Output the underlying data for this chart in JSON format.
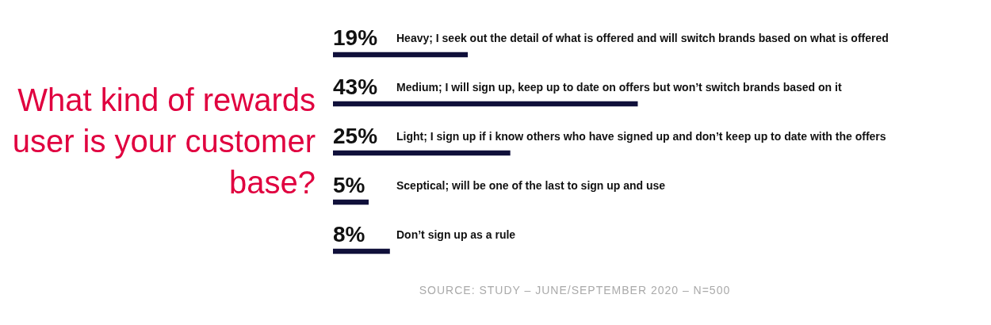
{
  "chart_data": {
    "type": "bar",
    "orientation": "horizontal",
    "title": "What kind of rewards user is your customer base?",
    "categories": [
      "Heavy; I seek out the detail of what is offered and will switch brands based on what is offered",
      "Medium; I will sign up, keep up to date on offers but won’t switch brands based on it",
      "Light; I sign up if i know others who have signed up and don’t keep up to date with the offers",
      "Sceptical; will be one of the last to sign up and use",
      "Don’t sign up as a rule"
    ],
    "values": [
      19,
      43,
      25,
      5,
      8
    ],
    "value_labels": [
      "19%",
      "43%",
      "25%",
      "5%",
      "8%"
    ],
    "color": "#10103a",
    "annotations": [
      "SOURCE: STUDY – JUNE/SEPTEMBER 2020 – N=500"
    ]
  }
}
